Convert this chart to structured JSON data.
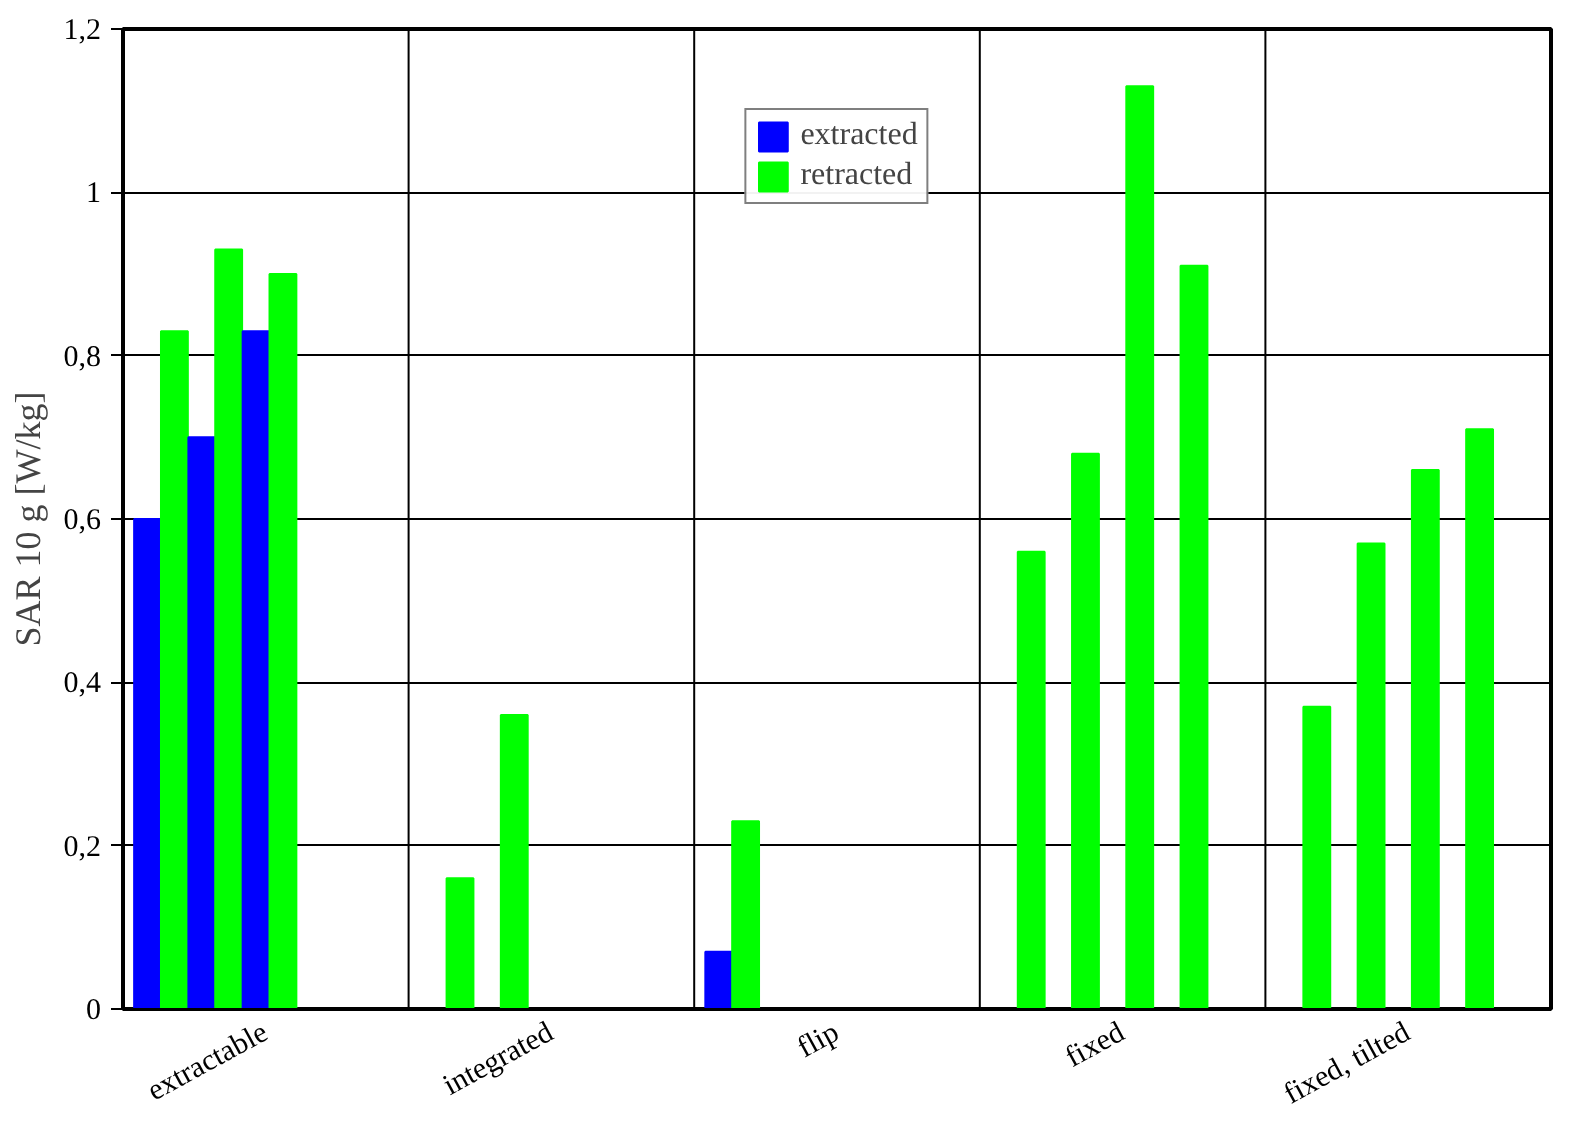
{
  "chart_data": {
    "type": "bar",
    "ylabel": "SAR 10 g [W/kg]",
    "categories": [
      "extractable",
      "integrated",
      "flip",
      "fixed",
      "fixed, tilted"
    ],
    "ylim": [
      0,
      1.2
    ],
    "yticks": [
      0,
      {
        "value": 0.2,
        "label": "0,2"
      },
      {
        "value": 0.4,
        "label": "0,4"
      },
      {
        "value": 0.6,
        "label": "0,6"
      },
      {
        "value": 0.8,
        "label": "0,8"
      },
      1,
      {
        "value": 1.2,
        "label": "1,2"
      }
    ],
    "series": [
      {
        "name": "extracted",
        "color": "#0000ff",
        "values": [
          0.6,
          null,
          0.07,
          null,
          null
        ]
      },
      {
        "name": "retracted",
        "color": "#00ff00",
        "values": [
          0.83,
          0.16,
          0.23,
          0.56,
          0.37
        ]
      },
      {
        "color": "#0000ff",
        "values": [
          0.7,
          null,
          null,
          null,
          null
        ]
      },
      {
        "color": "#00ff00",
        "values": [
          0.93,
          0.36,
          null,
          0.68,
          0.57
        ]
      },
      {
        "color": "#0000ff",
        "values": [
          0.83,
          null,
          null,
          null,
          null
        ]
      },
      {
        "color": "#00ff00",
        "values": [
          0.9,
          null,
          null,
          1.13,
          0.66
        ]
      },
      {
        "color": "#00ff00",
        "values": [
          null,
          null,
          null,
          0.91,
          0.71
        ]
      }
    ],
    "grid": true,
    "legend": "top"
  }
}
